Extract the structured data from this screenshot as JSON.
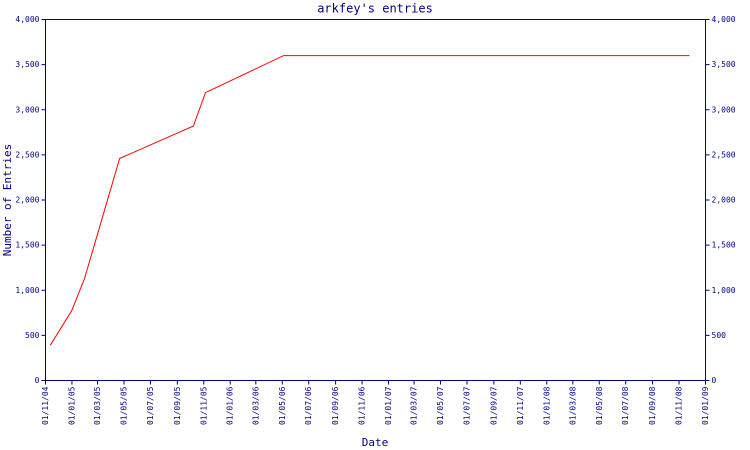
{
  "chart_data": {
    "type": "line",
    "title": "arkfey's entries",
    "x_label": "Date",
    "y_label": "Number of Entries",
    "x": [
      "12/11/04",
      "01/01/05",
      "30/01/05",
      "21/04/05",
      "08/10/05",
      "05/11/05",
      "04/05/06",
      "25/11/08"
    ],
    "series": [
      {
        "name": "entries",
        "color": "#ff0000",
        "values": [
          390,
          780,
          1130,
          2460,
          2820,
          3190,
          3600,
          3600
        ]
      }
    ],
    "xlim": [
      "01/11/04",
      "01/01/09"
    ],
    "xticks": [
      "01/11/04",
      "01/01/05",
      "01/03/05",
      "01/05/05",
      "01/07/05",
      "01/09/05",
      "01/11/05",
      "01/01/06",
      "01/03/06",
      "01/05/06",
      "01/07/06",
      "01/09/06",
      "01/11/06",
      "01/01/07",
      "01/03/07",
      "01/05/07",
      "01/07/07",
      "01/09/07",
      "01/11/07",
      "01/01/08",
      "01/03/08",
      "01/05/08",
      "01/07/08",
      "01/09/08",
      "01/11/08",
      "01/01/09"
    ],
    "ylim": [
      0,
      4000
    ],
    "yticks": [
      0,
      500,
      {
        "value": 1000,
        "label": "1,000"
      },
      {
        "value": 1500,
        "label": "1,500"
      },
      {
        "value": 2000,
        "label": "2,000"
      },
      {
        "value": 2500,
        "label": "2,500"
      },
      {
        "value": 3000,
        "label": "3,000"
      },
      {
        "value": 3500,
        "label": "3,500"
      },
      {
        "value": 4000,
        "label": "4,000"
      }
    ],
    "y_axis_mirrored": true,
    "grid": false
  }
}
